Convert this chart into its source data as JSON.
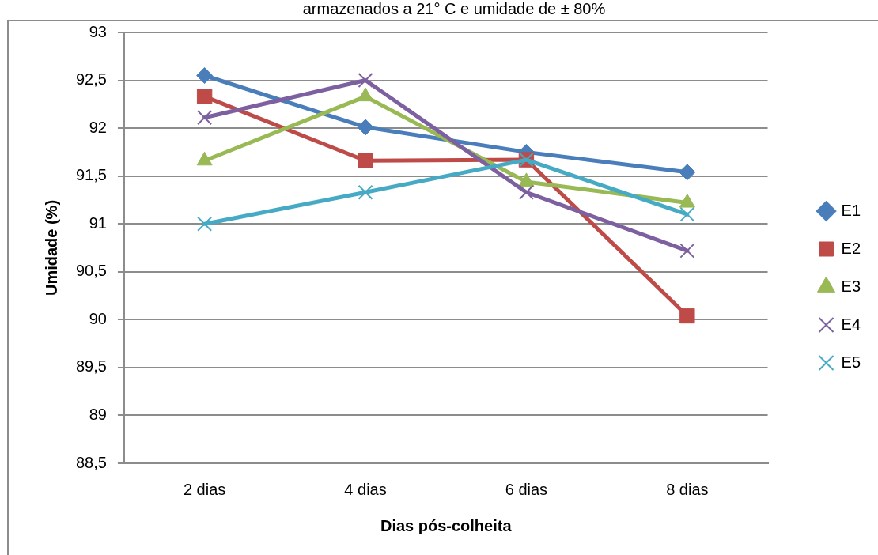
{
  "chart_data": {
    "type": "line",
    "title": "armazenados a 21° C e umidade de ± 80%",
    "xlabel": "Dias pós-colheita",
    "ylabel": "Umidade (%)",
    "categories": [
      "2 dias",
      "4 dias",
      "6 dias",
      "8 dias"
    ],
    "series": [
      {
        "name": "E1",
        "color": "#4a7ebb",
        "marker": "diamond",
        "values": [
          92.55,
          92.01,
          91.75,
          91.54
        ]
      },
      {
        "name": "E2",
        "color": "#be4b48",
        "marker": "square",
        "values": [
          92.33,
          91.66,
          91.67,
          90.04
        ]
      },
      {
        "name": "E3",
        "color": "#98b954",
        "marker": "triangle",
        "values": [
          91.66,
          92.33,
          91.44,
          91.22
        ]
      },
      {
        "name": "E4",
        "color": "#7d60a0",
        "marker": "cross",
        "values": [
          92.11,
          92.5,
          91.33,
          90.72
        ]
      },
      {
        "name": "E5",
        "color": "#46aac5",
        "marker": "cross",
        "values": [
          91.0,
          91.33,
          91.67,
          91.1
        ]
      }
    ],
    "ylim": [
      88.5,
      93
    ],
    "yticks": [
      {
        "value": 88.5,
        "label": "88,5"
      },
      89,
      {
        "value": 89.5,
        "label": "89,5"
      },
      90,
      {
        "value": 90.5,
        "label": "90,5"
      },
      91,
      {
        "value": 91.5,
        "label": "91,5"
      },
      92,
      {
        "value": 92.5,
        "label": "92,5"
      },
      93
    ],
    "grid": "y",
    "legend": "right",
    "line_style": "solid"
  }
}
